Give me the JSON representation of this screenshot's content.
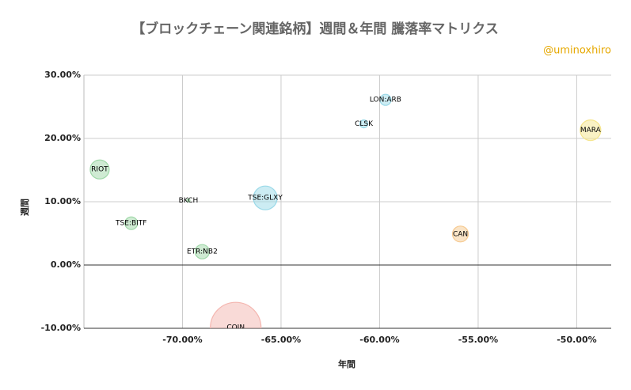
{
  "chart_data": {
    "type": "bubble",
    "title": "【ブロックチェーン関連銘柄】週間＆年間 騰落率マトリクス",
    "watermark": "@uminoxhiro",
    "x_label": "年間",
    "y_label": "週間",
    "xlim": [
      -75,
      -48.25
    ],
    "ylim": [
      -10,
      30
    ],
    "xticks": [
      {
        "value": -70,
        "label": "-70.00%"
      },
      {
        "value": -65,
        "label": "-65.00%"
      },
      {
        "value": -60,
        "label": "-60.00%"
      },
      {
        "value": -55,
        "label": "-55.00%"
      },
      {
        "value": -50,
        "label": "-50.00%"
      }
    ],
    "yticks": [
      {
        "value": -10,
        "label": "-10.00%"
      },
      {
        "value": 0,
        "label": "0.00%"
      },
      {
        "value": 10,
        "label": "10.00%"
      },
      {
        "value": 20,
        "label": "20.00%"
      },
      {
        "value": 30,
        "label": "30.00%"
      }
    ],
    "grid": true,
    "points": [
      {
        "name": "RIOT",
        "x": -74.2,
        "y": 15.1,
        "size": 144,
        "color": "#9fd8a8"
      },
      {
        "name": "TSE:BITF",
        "x": -72.6,
        "y": 6.6,
        "size": 64,
        "color": "#9fd8a8"
      },
      {
        "name": "BKCH",
        "x": -69.7,
        "y": 10.2,
        "size": 4,
        "color": "#9fd8a8"
      },
      {
        "name": "ETR:NB2",
        "x": -69.0,
        "y": 2.1,
        "size": 81,
        "color": "#9fd8a8"
      },
      {
        "name": "TSE:GLXY",
        "x": -65.8,
        "y": 10.6,
        "size": 225,
        "color": "#9ad9e8"
      },
      {
        "name": "COIN",
        "x": -67.3,
        "y": -9.9,
        "size": 1024,
        "color": "#f4b6b0"
      },
      {
        "name": "CLSK",
        "x": -60.8,
        "y": 22.3,
        "size": 25,
        "color": "#9ad9e8"
      },
      {
        "name": "LON:ARB",
        "x": -59.7,
        "y": 26.1,
        "size": 49,
        "color": "#9ad9e8"
      },
      {
        "name": "CAN",
        "x": -55.9,
        "y": 4.9,
        "size": 100,
        "color": "#f6c98f"
      },
      {
        "name": "MARA",
        "x": -49.3,
        "y": 21.3,
        "size": 169,
        "color": "#f5e58c"
      }
    ]
  }
}
